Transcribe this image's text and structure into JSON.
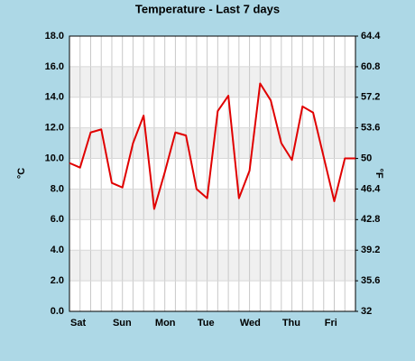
{
  "chart_data": {
    "type": "line",
    "title": "Temperature - Last 7 days",
    "y_label": "°C",
    "y2_label": "°F",
    "categories": [
      "Sat",
      null,
      null,
      null,
      "Sun",
      null,
      null,
      null,
      "Mon",
      null,
      null,
      null,
      "Tue",
      null,
      null,
      null,
      "Wed",
      null,
      null,
      null,
      "Thu",
      null,
      null,
      null,
      "Fri",
      null,
      null,
      null
    ],
    "series": [
      {
        "name": "Temperature",
        "color": "#e00000",
        "values": [
          9.7,
          9.4,
          11.7,
          11.9,
          8.4,
          8.1,
          11.0,
          12.8,
          6.7,
          9.1,
          11.7,
          11.5,
          8.0,
          7.4,
          13.1,
          14.1,
          7.4,
          9.2,
          14.9,
          13.8,
          11.0,
          9.9,
          13.4,
          13.0,
          10.1,
          7.2,
          10.0,
          10.0
        ]
      }
    ],
    "ylim": [
      0,
      18
    ],
    "yticks": [
      {
        "value": 0,
        "label": "0.0"
      },
      {
        "value": 2,
        "label": "2.0"
      },
      {
        "value": 4,
        "label": "4.0"
      },
      {
        "value": 6,
        "label": "6.0"
      },
      {
        "value": 8,
        "label": "8.0"
      },
      {
        "value": 10,
        "label": "10.0"
      },
      {
        "value": 12,
        "label": "12.0"
      },
      {
        "value": 14,
        "label": "14.0"
      },
      {
        "value": 16,
        "label": "16.0"
      },
      {
        "value": 18,
        "label": "18.0"
      }
    ],
    "y2lim": [
      32,
      64.4
    ],
    "y2ticks": [
      32,
      35.6,
      39.2,
      42.8,
      46.4,
      50,
      53.6,
      57.2,
      60.8,
      64.4
    ],
    "grid": true,
    "bands": true
  }
}
